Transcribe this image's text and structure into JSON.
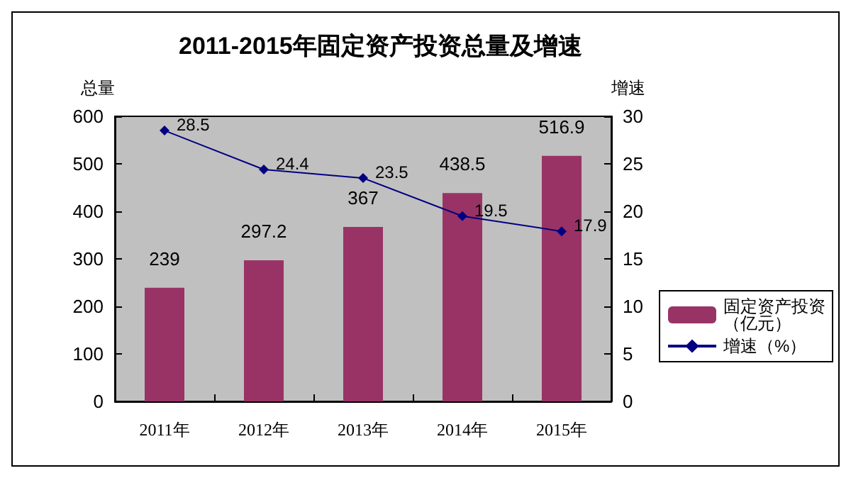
{
  "chart_data": {
    "type": "bar",
    "title": "2011-2015年固定资产投资总量及增速",
    "ylabel": "总量",
    "y2label": "增速",
    "categories": [
      "2011年",
      "2012年",
      "2013年",
      "2014年",
      "2015年"
    ],
    "series": [
      {
        "name": "固定资产投资（亿元）",
        "color": "#993366",
        "values": [
          239,
          297.2,
          367,
          438.5,
          516.9
        ]
      },
      {
        "name": "增速（%）",
        "type": "line",
        "axis": "y2",
        "color": "#000080",
        "values": [
          28.5,
          24.4,
          23.5,
          19.5,
          17.9
        ]
      }
    ],
    "ylim": [
      0,
      600
    ],
    "yticks": [
      0,
      100,
      200,
      300,
      400,
      500,
      600
    ],
    "y2lim": [
      0,
      30
    ],
    "y2ticks": [
      0,
      5,
      10,
      15,
      20,
      25,
      30
    ],
    "data_labels": true,
    "grid": false,
    "legend": "right",
    "marker": "diamond",
    "line_style": "solid"
  }
}
